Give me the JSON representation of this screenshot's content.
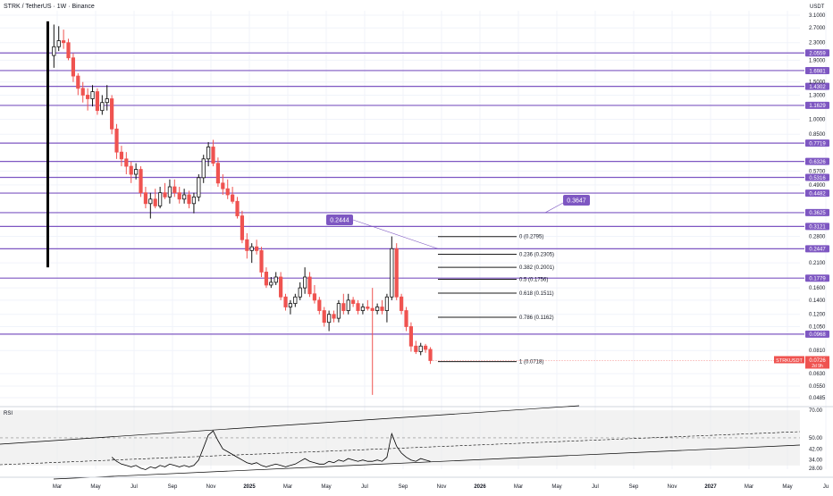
{
  "header": {
    "symbol_title": "STRK / TetherUS · 1W · Binance",
    "currency": "USDT"
  },
  "colors": {
    "up": "#111111",
    "down": "#ef5350",
    "level_line": "#7e57c2",
    "level_label_bg": "#7e57c2",
    "fib_line": "#1a1a1a",
    "rsi_line": "#000000",
    "current_price_bg": "#ef5350"
  },
  "chart_data": {
    "type": "candlestick",
    "scale": "log",
    "y_tick_labels": [
      "3.1000",
      "2.7000",
      "2.3000",
      "1.9000",
      "1.5000",
      "1.3000",
      "1.0000",
      "0.8500",
      "0.5700",
      "0.4900",
      "0.2800",
      "0.2100",
      "0.1600",
      "0.1400",
      "0.1200",
      "0.1050",
      "0.0810",
      "0.0630",
      "0.0550",
      "0.0485"
    ],
    "x_tick_labels": [
      "Mar",
      "May",
      "Jul",
      "Sep",
      "Nov",
      "2025",
      "Mar",
      "May",
      "Jul",
      "Sep",
      "Nov",
      "2026",
      "Mar",
      "May",
      "Jul",
      "Sep",
      "Nov",
      "2027",
      "Mar",
      "May",
      "Ju"
    ],
    "bold_x_ticks": [
      "2025",
      "2026",
      "2027"
    ],
    "horizontal_levels": [
      2.0559,
      1.6981,
      1.4302,
      1.1629,
      0.7719,
      0.6326,
      0.5316,
      0.4482,
      0.3625,
      0.3121,
      0.2447,
      0.1779,
      0.0968
    ],
    "callouts": [
      "0.2444",
      "0.3647"
    ],
    "fibonacci": {
      "levels": [
        {
          "label": "0 (0.2795)",
          "value": 0.2795
        },
        {
          "label": "0.236 (0.2305)",
          "value": 0.2305
        },
        {
          "label": "0.382 (0.2001)",
          "value": 0.2001
        },
        {
          "label": "0.5 (0.1756)",
          "value": 0.1756
        },
        {
          "label": "0.618 (0.1511)",
          "value": 0.1511
        },
        {
          "label": "0.786 (0.1162)",
          "value": 0.1162
        },
        {
          "label": "1 (0.0718)",
          "value": 0.0718
        }
      ]
    },
    "current_price": {
      "symbol": "STRKUSDT",
      "value": "0.0726",
      "countdown": "2d 9h"
    },
    "candles": [
      [
        2.0,
        2.8,
        1.75,
        2.2
      ],
      [
        2.2,
        2.75,
        2.1,
        2.35
      ],
      [
        2.35,
        2.65,
        2.15,
        2.3
      ],
      [
        2.3,
        2.4,
        1.9,
        1.95
      ],
      [
        1.95,
        2.05,
        1.5,
        1.6
      ],
      [
        1.6,
        1.65,
        1.3,
        1.4
      ],
      [
        1.4,
        1.5,
        1.2,
        1.3
      ],
      [
        1.3,
        1.4,
        1.1,
        1.25
      ],
      [
        1.25,
        1.45,
        1.15,
        1.35
      ],
      [
        1.35,
        1.4,
        1.05,
        1.1
      ],
      [
        1.1,
        1.3,
        1.05,
        1.2
      ],
      [
        1.2,
        1.45,
        1.1,
        1.25
      ],
      [
        1.25,
        1.3,
        0.85,
        0.9
      ],
      [
        0.9,
        0.95,
        0.65,
        0.7
      ],
      [
        0.7,
        0.75,
        0.6,
        0.65
      ],
      [
        0.65,
        0.7,
        0.55,
        0.6
      ],
      [
        0.6,
        0.63,
        0.5,
        0.55
      ],
      [
        0.55,
        0.62,
        0.52,
        0.58
      ],
      [
        0.58,
        0.6,
        0.43,
        0.45
      ],
      [
        0.45,
        0.48,
        0.38,
        0.4
      ],
      [
        0.4,
        0.45,
        0.34,
        0.42
      ],
      [
        0.42,
        0.47,
        0.38,
        0.39
      ],
      [
        0.39,
        0.48,
        0.38,
        0.45
      ],
      [
        0.45,
        0.5,
        0.42,
        0.43
      ],
      [
        0.43,
        0.52,
        0.4,
        0.48
      ],
      [
        0.48,
        0.52,
        0.43,
        0.45
      ],
      [
        0.45,
        0.48,
        0.4,
        0.42
      ],
      [
        0.42,
        0.47,
        0.4,
        0.44
      ],
      [
        0.44,
        0.46,
        0.38,
        0.4
      ],
      [
        0.4,
        0.45,
        0.36,
        0.43
      ],
      [
        0.43,
        0.55,
        0.41,
        0.53
      ],
      [
        0.53,
        0.68,
        0.5,
        0.65
      ],
      [
        0.65,
        0.78,
        0.6,
        0.74
      ],
      [
        0.74,
        0.8,
        0.6,
        0.62
      ],
      [
        0.62,
        0.66,
        0.48,
        0.5
      ],
      [
        0.5,
        0.55,
        0.44,
        0.47
      ],
      [
        0.47,
        0.52,
        0.42,
        0.44
      ],
      [
        0.44,
        0.48,
        0.4,
        0.41
      ],
      [
        0.41,
        0.43,
        0.34,
        0.35
      ],
      [
        0.35,
        0.37,
        0.26,
        0.27
      ],
      [
        0.27,
        0.29,
        0.22,
        0.24
      ],
      [
        0.24,
        0.26,
        0.21,
        0.25
      ],
      [
        0.25,
        0.27,
        0.23,
        0.24
      ],
      [
        0.24,
        0.25,
        0.18,
        0.19
      ],
      [
        0.19,
        0.2,
        0.16,
        0.165
      ],
      [
        0.165,
        0.18,
        0.16,
        0.17
      ],
      [
        0.17,
        0.19,
        0.165,
        0.18
      ],
      [
        0.18,
        0.19,
        0.14,
        0.145
      ],
      [
        0.145,
        0.15,
        0.125,
        0.13
      ],
      [
        0.13,
        0.14,
        0.12,
        0.135
      ],
      [
        0.135,
        0.15,
        0.13,
        0.145
      ],
      [
        0.145,
        0.17,
        0.14,
        0.16
      ],
      [
        0.16,
        0.2,
        0.15,
        0.18
      ],
      [
        0.18,
        0.19,
        0.145,
        0.15
      ],
      [
        0.15,
        0.165,
        0.135,
        0.14
      ],
      [
        0.14,
        0.145,
        0.12,
        0.125
      ],
      [
        0.125,
        0.13,
        0.105,
        0.11
      ],
      [
        0.11,
        0.125,
        0.1,
        0.12
      ],
      [
        0.12,
        0.125,
        0.11,
        0.115
      ],
      [
        0.115,
        0.14,
        0.11,
        0.135
      ],
      [
        0.135,
        0.15,
        0.12,
        0.125
      ],
      [
        0.125,
        0.15,
        0.12,
        0.14
      ],
      [
        0.14,
        0.145,
        0.13,
        0.135
      ],
      [
        0.135,
        0.14,
        0.12,
        0.125
      ],
      [
        0.125,
        0.135,
        0.12,
        0.13
      ],
      [
        0.13,
        0.14,
        0.125,
        0.128
      ],
      [
        0.128,
        0.16,
        0.05,
        0.125
      ],
      [
        0.125,
        0.135,
        0.12,
        0.13
      ],
      [
        0.13,
        0.14,
        0.12,
        0.125
      ],
      [
        0.125,
        0.15,
        0.11,
        0.145
      ],
      [
        0.145,
        0.28,
        0.14,
        0.245
      ],
      [
        0.245,
        0.26,
        0.14,
        0.145
      ],
      [
        0.145,
        0.15,
        0.12,
        0.125
      ],
      [
        0.125,
        0.13,
        0.1,
        0.105
      ],
      [
        0.105,
        0.11,
        0.08,
        0.085
      ],
      [
        0.085,
        0.09,
        0.078,
        0.08
      ],
      [
        0.08,
        0.088,
        0.077,
        0.085
      ],
      [
        0.085,
        0.087,
        0.079,
        0.082
      ],
      [
        0.082,
        0.084,
        0.07,
        0.0726
      ]
    ],
    "rsi": {
      "label": "RSI",
      "y_tick_labels": [
        "70.00",
        "50.00",
        "42.00",
        "34.00",
        "28.00"
      ],
      "levels": [
        70,
        50,
        42,
        34,
        28
      ],
      "values": [
        null,
        null,
        null,
        null,
        null,
        null,
        null,
        null,
        null,
        null,
        null,
        null,
        36,
        33,
        31,
        30,
        29,
        30,
        28,
        27,
        29,
        28,
        30,
        29,
        31,
        30,
        29,
        30,
        29,
        30,
        34,
        43,
        52,
        55,
        48,
        42,
        40,
        38,
        36,
        34,
        32,
        31,
        32,
        30,
        29,
        30,
        31,
        30,
        29,
        30,
        31,
        33,
        35,
        33,
        32,
        31,
        31,
        33,
        32,
        34,
        33,
        35,
        34,
        33,
        34,
        33,
        33,
        34,
        33,
        36,
        53,
        44,
        39,
        36,
        34,
        33,
        35,
        34,
        33
      ]
    }
  }
}
